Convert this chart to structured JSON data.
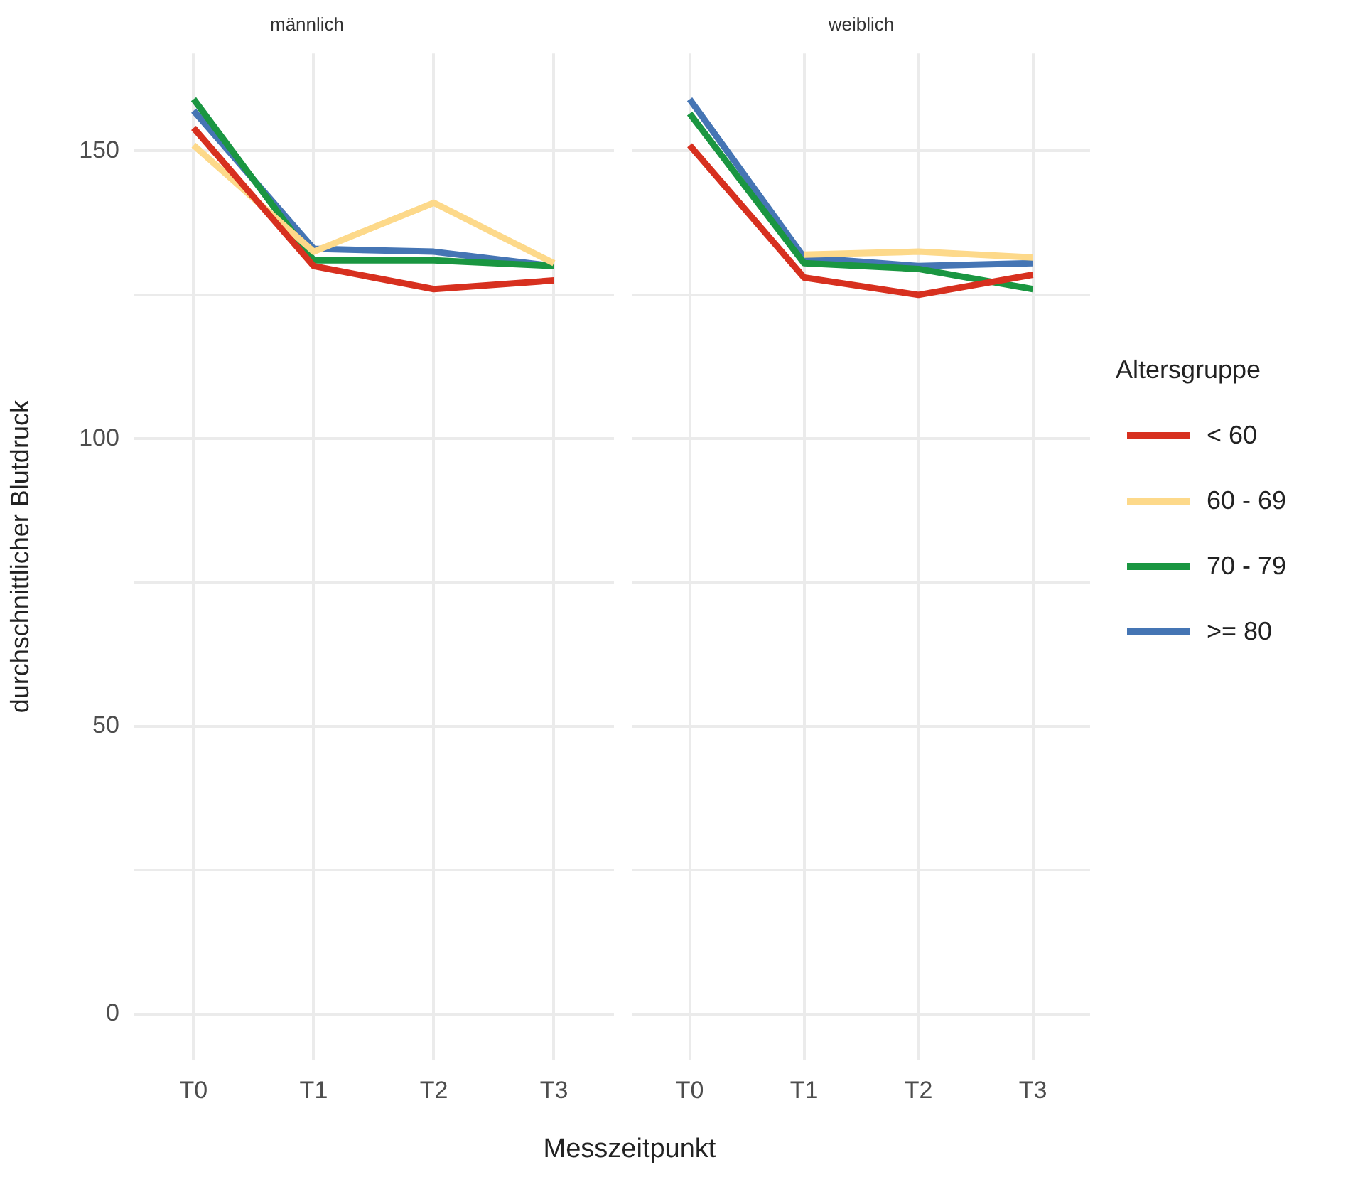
{
  "chart_data": [
    {
      "type": "line",
      "title": "männlich",
      "xlabel": "Messzeitpunkt",
      "ylabel": "durchschnittlicher Blutdruck",
      "categories": [
        "T0",
        "T1",
        "T2",
        "T3"
      ],
      "series": [
        {
          "color": "#d7301f",
          "values": [
            154,
            130,
            126,
            127.5
          ]
        },
        {
          "color": "#fdd98a",
          "values": [
            151,
            132.5,
            141,
            130.5
          ]
        },
        {
          "color": "#1a9641",
          "values": [
            159,
            131,
            131,
            130
          ]
        },
        {
          "color": "#4575b4",
          "values": [
            157,
            133,
            132.5,
            130
          ]
        }
      ],
      "ylim": [
        -7.95,
        166.95
      ],
      "yticks": [
        0,
        {
          "value": 25,
          "label": null
        },
        50,
        {
          "value": 75,
          "label": null
        },
        100,
        {
          "value": 125,
          "label": null
        },
        150
      ],
      "grid": true,
      "legend": false,
      "marker": "none"
    },
    {
      "type": "line",
      "title": "weiblich",
      "legend_title": "Altersgruppe",
      "categories": [
        "T0",
        "T1",
        "T2",
        "T3"
      ],
      "series": [
        {
          "name": "< 60",
          "color": "#d7301f",
          "values": [
            151,
            128,
            125,
            128.5
          ]
        },
        {
          "name": "60 - 69",
          "color": "#fdd98a",
          "values": [
            null,
            132,
            132.5,
            131.5
          ]
        },
        {
          "name": "70 - 79",
          "color": "#1a9641",
          "values": [
            156.5,
            130.5,
            129.5,
            126
          ]
        },
        {
          "name": ">= 80",
          "color": "#4575b4",
          "values": [
            159,
            131.5,
            130,
            130.5
          ]
        }
      ],
      "ylim": [
        -7.95,
        166.95
      ],
      "yticks": [
        0,
        {
          "value": 25,
          "label": null
        },
        50,
        {
          "value": 75,
          "label": null
        },
        100,
        {
          "value": 125,
          "label": null
        },
        150
      ],
      "grid": true,
      "legend": "right",
      "marker": "none",
      "tick_labels": "x"
    }
  ]
}
